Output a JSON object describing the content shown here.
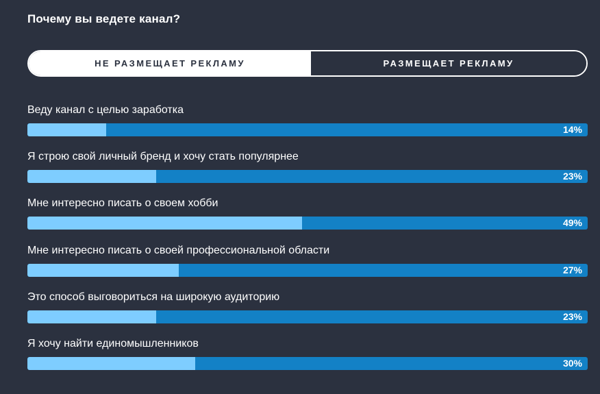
{
  "title": "Почему вы ведете канал?",
  "toggle": {
    "left_label": "НЕ РАЗМЕЩАЕТ РЕКЛАМУ",
    "right_label": "РАЗМЕЩАЕТ РЕКЛАМУ",
    "selected": "left"
  },
  "colors": {
    "background": "#2b313f",
    "bar_track": "#1381c6",
    "bar_fill": "#7ecdff",
    "text": "#ffffff"
  },
  "chart_data": {
    "type": "bar",
    "orientation": "horizontal",
    "categories": [
      "Веду канал с целью заработка",
      "Я строю свой личный бренд и хочу стать популярнее",
      "Мне интересно писать о своем хобби",
      "Мне интересно писать о своей профессиональной области",
      "Это способ выговориться на широкую аудиторию",
      "Я хочу найти единомышленников"
    ],
    "values": [
      14,
      23,
      49,
      27,
      23,
      30
    ],
    "value_labels": [
      "14%",
      "23%",
      "49%",
      "27%",
      "23%",
      "30%"
    ],
    "xlim": [
      0,
      100
    ],
    "grid": false,
    "legend": "none"
  }
}
